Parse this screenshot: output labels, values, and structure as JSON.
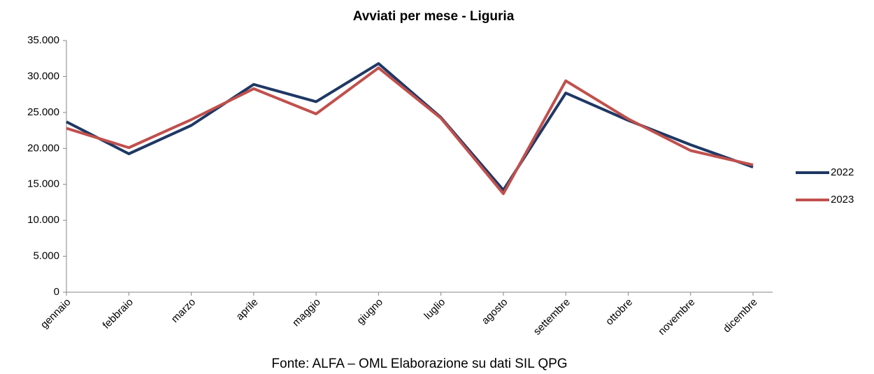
{
  "chart_data": {
    "type": "line",
    "title": "Avviati per mese - Liguria",
    "categories": [
      "gennaio",
      "febbraio",
      "marzo",
      "aprile",
      "maggio",
      "giugno",
      "luglio",
      "agosto",
      "settembre",
      "ottobre",
      "novembre",
      "dicembre"
    ],
    "series": [
      {
        "name": "2022",
        "color": "#1f3864",
        "values": [
          23700,
          19250,
          23200,
          28900,
          26500,
          31800,
          24300,
          14200,
          27700,
          23900,
          20500,
          17400
        ]
      },
      {
        "name": "2023",
        "color": "#c0504d",
        "values": [
          22800,
          20100,
          24000,
          28300,
          24800,
          31200,
          24200,
          13700,
          29400,
          24100,
          19700,
          17700
        ]
      }
    ],
    "ylim": [
      0,
      35000
    ],
    "yticks": [
      0,
      {
        "value": 5000,
        "label": "5.000"
      },
      {
        "value": 10000,
        "label": "10.000"
      },
      {
        "value": 15000,
        "label": "15.000"
      },
      {
        "value": 20000,
        "label": "20.000"
      },
      {
        "value": 25000,
        "label": "25.000"
      },
      {
        "value": 30000,
        "label": "30.000"
      },
      {
        "value": 35000,
        "label": "35.000"
      }
    ],
    "grid": false,
    "legend": "right",
    "source": "Fonte: ALFA – OML Elaborazione su dati SIL QPG"
  }
}
